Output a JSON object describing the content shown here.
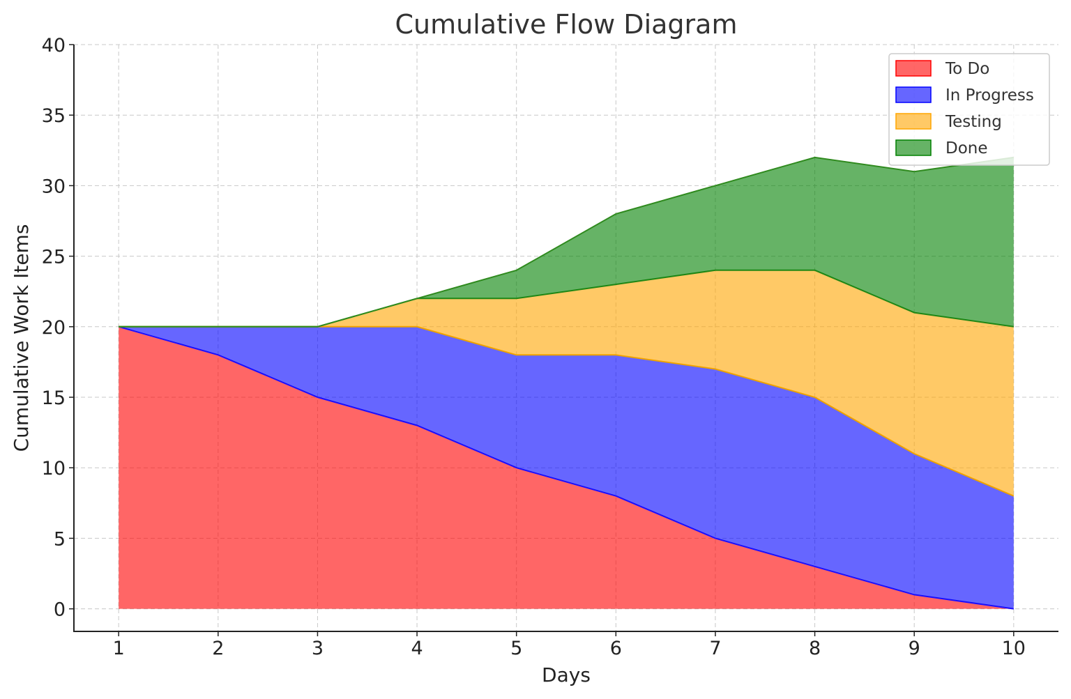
{
  "chart_data": {
    "type": "area",
    "stacked": true,
    "title": "Cumulative Flow Diagram",
    "xlabel": "Days",
    "ylabel": "Cumulative Work Items",
    "x": [
      1,
      2,
      3,
      4,
      5,
      6,
      7,
      8,
      9,
      10
    ],
    "xticks": [
      "1",
      "2",
      "3",
      "4",
      "5",
      "6",
      "7",
      "8",
      "9",
      "10"
    ],
    "yticks": [
      "0",
      "5",
      "10",
      "15",
      "20",
      "25",
      "30",
      "35",
      "40"
    ],
    "xlim": [
      0.55,
      10.45
    ],
    "ylim": [
      -1.6,
      40
    ],
    "grid": true,
    "legend_position": "top-right",
    "series": [
      {
        "name": "To Do",
        "values": [
          20,
          18,
          15,
          13,
          10,
          8,
          5,
          3,
          1,
          0
        ],
        "color": "#ff0000",
        "edge": "#2a14ff"
      },
      {
        "name": "In Progress",
        "values": [
          0,
          2,
          5,
          7,
          8,
          10,
          12,
          12,
          10,
          8
        ],
        "color": "#0000ff",
        "edge": "#e8a200"
      },
      {
        "name": "Testing",
        "values": [
          0,
          0,
          0,
          2,
          4,
          5,
          7,
          9,
          10,
          12
        ],
        "color": "#ffa500",
        "edge": "#2f8a1e"
      },
      {
        "name": "Done",
        "values": [
          0,
          0,
          0,
          0,
          2,
          5,
          6,
          8,
          10,
          12
        ],
        "color": "#008000",
        "edge": "#2f8a1e"
      }
    ]
  }
}
